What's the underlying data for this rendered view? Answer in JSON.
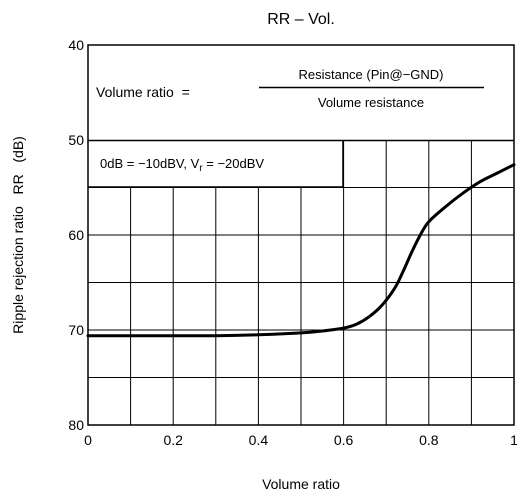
{
  "chart_data": {
    "type": "line",
    "title": "RR – Vol.",
    "xlabel": "Volume ratio",
    "ylabel": "Ripple rejection ratio   RR   (dB)",
    "xlim": [
      0,
      1
    ],
    "ylim": [
      40,
      80
    ],
    "y_inverted": true,
    "grid": true,
    "x_ticks": [
      0,
      0.2,
      0.4,
      0.6,
      0.8,
      1
    ],
    "x_tick_labels": [
      "0",
      "0.2",
      "0.4",
      "0.6",
      "0.8",
      "1"
    ],
    "y_ticks": [
      40,
      50,
      60,
      70,
      80
    ],
    "y_tick_labels": [
      "40",
      "50",
      "60",
      "70",
      "80"
    ],
    "series": [
      {
        "x": [
          0,
          0.1,
          0.2,
          0.3,
          0.4,
          0.5,
          0.55,
          0.6,
          0.63,
          0.66,
          0.69,
          0.72,
          0.74,
          0.76,
          0.78,
          0.8,
          0.84,
          0.88,
          0.92,
          0.96,
          1.0
        ],
        "y": [
          70.6,
          70.6,
          70.6,
          70.6,
          70.5,
          70.3,
          70.1,
          69.8,
          69.4,
          68.6,
          67.4,
          65.6,
          63.8,
          61.8,
          60.0,
          58.6,
          57.0,
          55.6,
          54.4,
          53.5,
          52.6
        ]
      }
    ]
  },
  "annotations": {
    "formula_label": "Volume ratio  =",
    "formula_numerator": "Resistance (Pin@−GND)",
    "formula_denominator": "Volume resistance",
    "condition_prefix": "0dB = −10dBV, V",
    "condition_sub": "r",
    "condition_suffix": " = −20dBV"
  }
}
